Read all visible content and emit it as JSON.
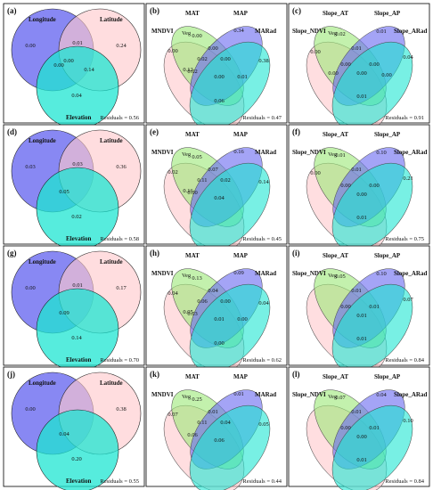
{
  "colors": {
    "blue": "#6e6ef0",
    "pink": "#ffc8cc",
    "cyan": "#1ee6d2",
    "green": "#9ee87a",
    "violet": "#6c6cf0",
    "border": "#000000"
  },
  "rows": [
    {
      "venn3": {
        "panel": "(a)",
        "labels": {
          "a": "Longitude",
          "b": "Latitude",
          "c": "Elevation"
        },
        "values": {
          "a": "0.00",
          "b": "0.24",
          "c": "0.04",
          "ab": "0.01",
          "abc": "0.00",
          "ac": "0.00",
          "bc": "0.14"
        },
        "residuals": "Residuals = 0.56"
      },
      "venn4a": {
        "panel": "(b)",
        "labels": {
          "a": "MAT",
          "b": "MAP",
          "c": "MNDVI",
          "c_sub": "Veg",
          "d": "MARad"
        },
        "values": {
          "v1": "0.00",
          "v2": "0.34",
          "v3": "0.00",
          "v4": "0.00",
          "v5": "0.02",
          "v6": "0.38",
          "v7": "0.00",
          "v8": "0.02",
          "v9": "0.12",
          "v10": "0.00",
          "v11": "0.01",
          "v12": "0.06"
        },
        "residuals": "Residuals = 0.47"
      },
      "venn4b": {
        "panel": "(c)",
        "labels": {
          "a": "Slope_AT",
          "b": "Slope_AP",
          "c": "Slope_NDVI",
          "c_sub": "Veg",
          "d": "Slope_ARad"
        },
        "values": {
          "v1": "0.02",
          "v2": "0.01",
          "v3": "0.00",
          "v4": "0.01",
          "v5": "0.00",
          "v6": "0.04",
          "v7": "0.00",
          "v8": "0.00",
          "v9": "0.00",
          "v10": "0.01",
          "v11": "0.00"
        },
        "residuals": "Residuals = 0.91"
      }
    },
    {
      "venn3": {
        "panel": "(d)",
        "labels": {
          "a": "Longitude",
          "b": "Latitude",
          "c": "Elevation"
        },
        "values": {
          "a": "0.03",
          "b": "0.36",
          "c": "0.02",
          "ab": "0.03",
          "abc": "0.05",
          "ac": "",
          "bc": ""
        },
        "residuals": "Residuals = 0.58"
      },
      "venn4a": {
        "panel": "(e)",
        "labels": {
          "a": "MAT",
          "b": "MAP",
          "c": "MNDVI",
          "c_sub": "Veg",
          "d": "MARad"
        },
        "values": {
          "v1": "0.05",
          "v2": "0.16",
          "v3": "0.02",
          "v4": "0.07",
          "v5": "0.11",
          "v6": "0.14",
          "v7": "0.02",
          "v8": "0.00",
          "v9": "0.16",
          "v10": "0.04",
          "v11": "",
          "v12": ""
        },
        "residuals": "Residuals = 0.45"
      },
      "venn4b": {
        "panel": "(f)",
        "labels": {
          "a": "Slope_AT",
          "b": "Slope_AP",
          "c": "Slope_NDVI",
          "c_sub": "Veg",
          "d": "Slope_ARad"
        },
        "values": {
          "v1": "0.01",
          "v2": "0.10",
          "v3": "0.00",
          "v4": "0.01",
          "v5": "0.00",
          "v6": "0.21",
          "v7": "0.00",
          "v8": "0.00",
          "v9": "",
          "v10": "0.01",
          "v11": ""
        },
        "residuals": "Residuals = 0.75"
      }
    },
    {
      "venn3": {
        "panel": "(g)",
        "labels": {
          "a": "Longitude",
          "b": "Latitude",
          "c": "Elevation"
        },
        "values": {
          "a": "0.00",
          "b": "0.17",
          "c": "0.14",
          "ab": "0.01",
          "abc": "0.09",
          "ac": "",
          "bc": ""
        },
        "residuals": "Residuals = 0.70"
      },
      "venn4a": {
        "panel": "(h)",
        "labels": {
          "a": "MAT",
          "b": "MAP",
          "c": "MNDVI",
          "c_sub": "Veg",
          "d": "MARad"
        },
        "values": {
          "v1": "0.13",
          "v2": "0.09",
          "v3": "0.04",
          "v4": "0.04",
          "v5": "0.06",
          "v6": "0.04",
          "v7": "0.00",
          "v8": "0.03",
          "v9": "0.05",
          "v10": "0.01",
          "v11": "0.00",
          "v12": "0.00"
        },
        "residuals": "Residuals = 0.62"
      },
      "venn4b": {
        "panel": "(i)",
        "labels": {
          "a": "Slope_AT",
          "b": "Slope_AP",
          "c": "Slope_NDVI",
          "c_sub": "Veg",
          "d": "Slope_ARad"
        },
        "values": {
          "v1": "0.05",
          "v2": "0.10",
          "v3": "",
          "v4": "0.01",
          "v5": "0.00",
          "v6": "0.07",
          "v7": "0.01",
          "v8": "0.01",
          "v9": "",
          "v10": "0.01",
          "v11": ""
        },
        "residuals": "Residuals = 0.84"
      }
    },
    {
      "venn3": {
        "panel": "(j)",
        "labels": {
          "a": "Longitude",
          "b": "Latitude",
          "c": "Elevation"
        },
        "values": {
          "a": "0.00",
          "b": "0.38",
          "c": "0.20",
          "ab": "",
          "abc": "0.04",
          "ac": "",
          "bc": ""
        },
        "residuals": "Residuals = 0.55"
      },
      "venn4a": {
        "panel": "(k)",
        "labels": {
          "a": "MAT",
          "b": "MAP",
          "c": "MNDVI",
          "c_sub": "Veg",
          "d": "MARad"
        },
        "values": {
          "v1": "0.25",
          "v2": "0.01",
          "v3": "0.07",
          "v4": "0.01",
          "v5": "0.11",
          "v6": "0.05",
          "v7": "0.04",
          "v8": "0.06",
          "v9": "",
          "v10": "0.06",
          "v11": "",
          "v12": ""
        },
        "residuals": "Residuals = 0.44"
      },
      "venn4b": {
        "panel": "(l)",
        "labels": {
          "a": "Slope_AT",
          "b": "Slope_AP",
          "c": "Slope_NDVI",
          "c_sub": "Veg",
          "d": "Slope_ARad"
        },
        "values": {
          "v1": "0.07",
          "v2": "0.04",
          "v3": "",
          "v4": "0.01",
          "v5": "0.00",
          "v6": "0.10",
          "v7": "0.01",
          "v8": "0.00",
          "v9": "",
          "v10": "0.01",
          "v11": ""
        },
        "residuals": "Residuals = 0.84"
      }
    }
  ]
}
